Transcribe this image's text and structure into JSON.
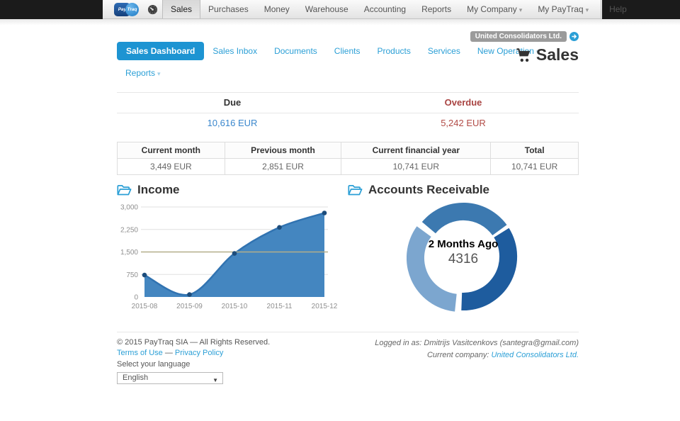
{
  "topnav": {
    "logo": {
      "part1": "Pay",
      "part2": "Traq"
    },
    "items": [
      "Sales",
      "Purchases",
      "Money",
      "Warehouse",
      "Accounting",
      "Reports"
    ],
    "active_item": "Sales",
    "right_items": [
      "My Company",
      "My PayTraq",
      "Help"
    ],
    "caret": "▾"
  },
  "header": {
    "company_badge": "United Consolidators Ltd.",
    "title": "Sales"
  },
  "tabs": {
    "row1": [
      "Sales Dashboard",
      "Sales Inbox",
      "Documents",
      "Clients",
      "Products",
      "Services",
      "New Operation"
    ],
    "row2": [
      "Reports"
    ],
    "active": "Sales Dashboard",
    "caret": "▾"
  },
  "summary": {
    "due_label": "Due",
    "due_value": "10,616 EUR",
    "overdue_label": "Overdue",
    "overdue_value": "5,242 EUR"
  },
  "stats_table": {
    "headers": [
      "Current month",
      "Previous month",
      "Current financial year",
      "Total"
    ],
    "values": [
      "3,449 EUR",
      "2,851 EUR",
      "10,741 EUR",
      "10,741 EUR"
    ]
  },
  "sections": {
    "income_title": "Income",
    "receivables_title": "Accounts Receivable"
  },
  "chart_data": [
    {
      "type": "area",
      "title": "Income",
      "x": [
        "2015-08",
        "2015-09",
        "2015-10",
        "2015-11",
        "2015-12"
      ],
      "values": [
        730,
        80,
        1450,
        2320,
        2800
      ],
      "xlabel": "",
      "ylabel": "",
      "ylim": [
        0,
        3000
      ],
      "yticks": [
        0,
        750,
        1500,
        2250,
        3000
      ],
      "ytick_labels": [
        "0",
        "750",
        "1,500",
        "2,250",
        "3,000"
      ],
      "grid": true,
      "highlight_gridline": 1500,
      "area_color": "#4486c0",
      "line_color": "#3173b1",
      "point_color": "#1d4d7c",
      "grid_color": "#e0e0e0",
      "highlight_grid_color": "#b3ae8a",
      "axis_label_color": "#8f8f8f",
      "legend": "off"
    },
    {
      "type": "pie",
      "donut": true,
      "title": "Accounts Receivable",
      "center_label": "2 Months Ago",
      "center_value": "4316",
      "outer_radius": 76,
      "inner_radius": 51,
      "slices": [
        {
          "name": "slice-top",
          "start_deg": -50,
          "end_deg": 54,
          "color": "#3c79b0",
          "selected": false
        },
        {
          "name": "slice-right",
          "start_deg": 58,
          "end_deg": 182,
          "color": "#1e5c9e",
          "selected": false
        },
        {
          "name": "slice-left",
          "start_deg": 186,
          "end_deg": 306,
          "color": "#7ca6cf",
          "selected": true,
          "label": "2 Months Ago",
          "value": 4316
        }
      ]
    }
  ],
  "footer": {
    "copyright": "© 2015 PayTraq SIA — All Rights Reserved.",
    "links": {
      "terms": "Terms of Use",
      "separator": "—",
      "privacy": "Privacy Policy"
    },
    "language_label": "Select your language",
    "language_value": "English",
    "logged_in": "Logged in as: Dmitrijs Vasitcenkovs (santegra@gmail.com)",
    "current_company_label": "Current company:",
    "current_company_link": "United Consolidators Ltd."
  },
  "colors": {
    "accent_blue": "#2b9fd6",
    "active_tab_bg": "#1d94d2",
    "due_link_blue": "#3a87cd",
    "overdue_red": "#a94442",
    "topnav_dark": "#1b1b1b",
    "badge_gray": "#9b9b9b"
  }
}
